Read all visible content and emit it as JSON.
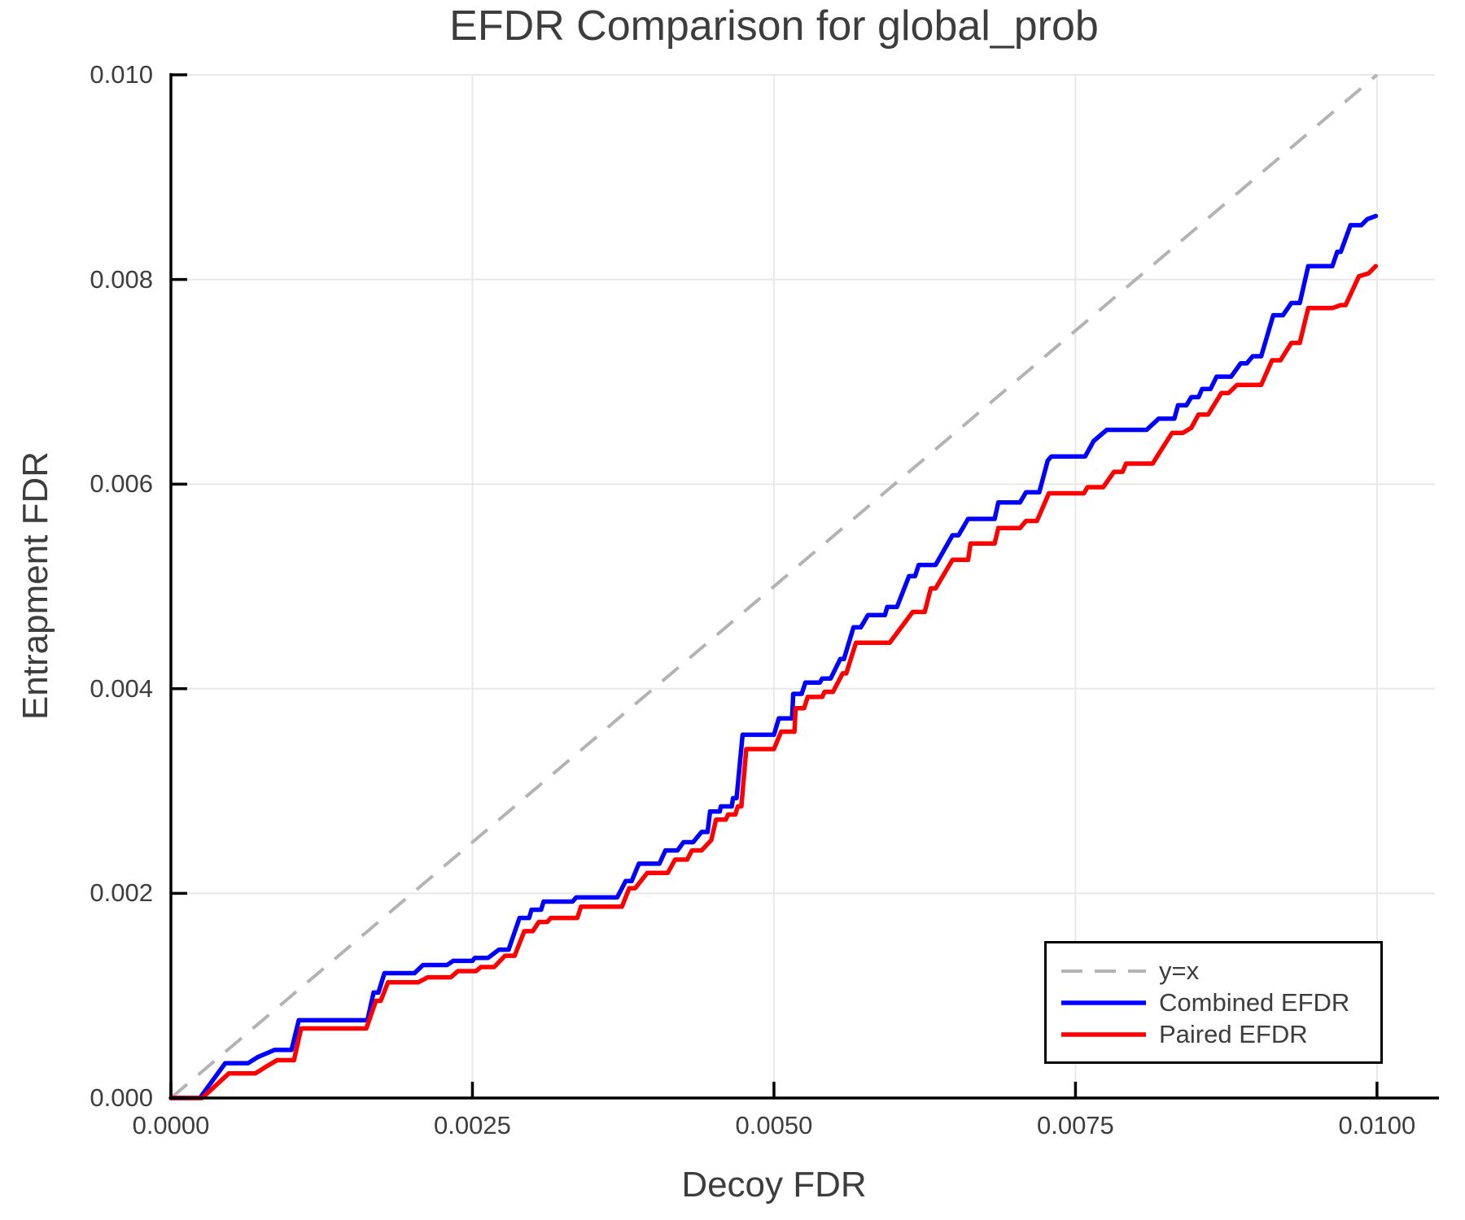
{
  "title": "EFDR Comparison for global_prob",
  "axes": {
    "x_label": "Decoy FDR",
    "y_label": "Entrapment FDR",
    "x_tick_labels": [
      "0.0000",
      "0.0025",
      "0.0050",
      "0.0075",
      "0.0100"
    ],
    "y_tick_labels": [
      "0.000",
      "0.002",
      "0.004",
      "0.006",
      "0.008",
      "0.010"
    ]
  },
  "colors": {
    "combined": "#0000ff",
    "paired": "#ff0000",
    "identity": "#b3b3b3",
    "grid": "#e8e8e8",
    "axis": "#000000",
    "text": "#3d3d3d",
    "background": "#ffffff"
  },
  "legend": {
    "entries": [
      {
        "label": "y=x",
        "color": "#b3b3b3",
        "dashed": true
      },
      {
        "label": "Combined EFDR",
        "color": "#0000ff",
        "dashed": false
      },
      {
        "label": "Paired EFDR",
        "color": "#ff0000",
        "dashed": false
      }
    ]
  },
  "chart_data": {
    "type": "line",
    "title": "EFDR Comparison for global_prob",
    "xlabel": "Decoy FDR",
    "ylabel": "Entrapment FDR",
    "xlim": [
      0,
      0.01048
    ],
    "ylim": [
      0,
      0.01
    ],
    "x_tick_values": [
      0,
      0.0025,
      0.005,
      0.0075,
      0.01
    ],
    "y_tick_values": [
      0,
      0.002,
      0.004,
      0.006,
      0.008,
      0.01
    ],
    "grid": true,
    "legend_position": "lower right",
    "series": [
      {
        "name": "y=x",
        "style": "dashed",
        "color": "#b3b3b3",
        "points": [
          [
            0,
            0
          ],
          [
            0.01,
            0.01
          ]
        ]
      },
      {
        "name": "Combined EFDR",
        "style": "solid",
        "color": "#0000ff",
        "points": [
          [
            0,
            0
          ],
          [
            0.00024,
            0
          ],
          [
            0.00045,
            0.00034
          ],
          [
            0.00064,
            0.00034
          ],
          [
            0.00072,
            0.0004
          ],
          [
            0.00086,
            0.00047
          ],
          [
            0.001,
            0.00047
          ],
          [
            0.00106,
            0.00076
          ],
          [
            0.00163,
            0.00076
          ],
          [
            0.00168,
            0.00103
          ],
          [
            0.00172,
            0.00103
          ],
          [
            0.00177,
            0.00122
          ],
          [
            0.00202,
            0.00122
          ],
          [
            0.00209,
            0.0013
          ],
          [
            0.00229,
            0.0013
          ],
          [
            0.00234,
            0.00134
          ],
          [
            0.0025,
            0.00134
          ],
          [
            0.00252,
            0.00137
          ],
          [
            0.00263,
            0.00137
          ],
          [
            0.00272,
            0.00145
          ],
          [
            0.0028,
            0.00145
          ],
          [
            0.00289,
            0.00176
          ],
          [
            0.00297,
            0.00176
          ],
          [
            0.00299,
            0.00184
          ],
          [
            0.00307,
            0.00184
          ],
          [
            0.00309,
            0.00192
          ],
          [
            0.00333,
            0.00192
          ],
          [
            0.00336,
            0.00196
          ],
          [
            0.0037,
            0.00196
          ],
          [
            0.00377,
            0.00212
          ],
          [
            0.00382,
            0.00212
          ],
          [
            0.00388,
            0.00229
          ],
          [
            0.00405,
            0.00229
          ],
          [
            0.0041,
            0.00242
          ],
          [
            0.0042,
            0.00242
          ],
          [
            0.00425,
            0.0025
          ],
          [
            0.00433,
            0.0025
          ],
          [
            0.0044,
            0.0026
          ],
          [
            0.00445,
            0.0026
          ],
          [
            0.00447,
            0.0028
          ],
          [
            0.00455,
            0.0028
          ],
          [
            0.00456,
            0.00285
          ],
          [
            0.00465,
            0.00285
          ],
          [
            0.00466,
            0.00293
          ],
          [
            0.00469,
            0.00293
          ],
          [
            0.00474,
            0.00355
          ],
          [
            0.005,
            0.00355
          ],
          [
            0.00504,
            0.00371
          ],
          [
            0.00515,
            0.00371
          ],
          [
            0.00516,
            0.00395
          ],
          [
            0.00523,
            0.00395
          ],
          [
            0.00526,
            0.00406
          ],
          [
            0.00538,
            0.00406
          ],
          [
            0.0054,
            0.0041
          ],
          [
            0.00547,
            0.0041
          ],
          [
            0.00555,
            0.00429
          ],
          [
            0.00558,
            0.00429
          ],
          [
            0.00566,
            0.0046
          ],
          [
            0.00572,
            0.0046
          ],
          [
            0.00578,
            0.00472
          ],
          [
            0.00592,
            0.00472
          ],
          [
            0.00594,
            0.0048
          ],
          [
            0.00602,
            0.0048
          ],
          [
            0.00612,
            0.0051
          ],
          [
            0.00617,
            0.0051
          ],
          [
            0.0062,
            0.00521
          ],
          [
            0.00634,
            0.00521
          ],
          [
            0.00648,
            0.0055
          ],
          [
            0.00653,
            0.0055
          ],
          [
            0.00661,
            0.00566
          ],
          [
            0.00683,
            0.00566
          ],
          [
            0.00686,
            0.00582
          ],
          [
            0.00704,
            0.00582
          ],
          [
            0.00709,
            0.00592
          ],
          [
            0.0072,
            0.00592
          ],
          [
            0.00727,
            0.00623
          ],
          [
            0.0073,
            0.00627
          ],
          [
            0.00758,
            0.00627
          ],
          [
            0.00765,
            0.00642
          ],
          [
            0.00776,
            0.00653
          ],
          [
            0.00809,
            0.00653
          ],
          [
            0.00819,
            0.00664
          ],
          [
            0.00832,
            0.00664
          ],
          [
            0.00835,
            0.00677
          ],
          [
            0.00842,
            0.00677
          ],
          [
            0.00846,
            0.00685
          ],
          [
            0.00852,
            0.00685
          ],
          [
            0.00855,
            0.00693
          ],
          [
            0.00862,
            0.00693
          ],
          [
            0.00867,
            0.00705
          ],
          [
            0.00879,
            0.00705
          ],
          [
            0.00887,
            0.00718
          ],
          [
            0.00892,
            0.00718
          ],
          [
            0.00897,
            0.00725
          ],
          [
            0.00904,
            0.00725
          ],
          [
            0.00914,
            0.00765
          ],
          [
            0.00922,
            0.00765
          ],
          [
            0.00929,
            0.00777
          ],
          [
            0.00936,
            0.00777
          ],
          [
            0.00943,
            0.00813
          ],
          [
            0.00963,
            0.00813
          ],
          [
            0.00967,
            0.00827
          ],
          [
            0.0097,
            0.00827
          ],
          [
            0.00978,
            0.00853
          ],
          [
            0.00987,
            0.00853
          ],
          [
            0.00992,
            0.00859
          ],
          [
            0.00999,
            0.00862
          ]
        ]
      },
      {
        "name": "Paired EFDR",
        "style": "solid",
        "color": "#ff0000",
        "points": [
          [
            0,
            0
          ],
          [
            0.00026,
            0
          ],
          [
            0.00048,
            0.00024
          ],
          [
            0.0007,
            0.00024
          ],
          [
            0.00078,
            0.0003
          ],
          [
            0.00088,
            0.00037
          ],
          [
            0.00102,
            0.00037
          ],
          [
            0.00108,
            0.00068
          ],
          [
            0.00162,
            0.00068
          ],
          [
            0.0017,
            0.00095
          ],
          [
            0.00174,
            0.00095
          ],
          [
            0.0018,
            0.00113
          ],
          [
            0.00205,
            0.00113
          ],
          [
            0.00213,
            0.00118
          ],
          [
            0.00232,
            0.00118
          ],
          [
            0.00238,
            0.00124
          ],
          [
            0.00253,
            0.00124
          ],
          [
            0.00257,
            0.00128
          ],
          [
            0.00268,
            0.00128
          ],
          [
            0.00277,
            0.00139
          ],
          [
            0.00285,
            0.00139
          ],
          [
            0.00293,
            0.00163
          ],
          [
            0.003,
            0.00163
          ],
          [
            0.00305,
            0.00172
          ],
          [
            0.00312,
            0.00172
          ],
          [
            0.00315,
            0.00176
          ],
          [
            0.00337,
            0.00176
          ],
          [
            0.0034,
            0.00187
          ],
          [
            0.00374,
            0.00187
          ],
          [
            0.0038,
            0.00205
          ],
          [
            0.00385,
            0.00205
          ],
          [
            0.00395,
            0.0022
          ],
          [
            0.00412,
            0.0022
          ],
          [
            0.00418,
            0.00233
          ],
          [
            0.00428,
            0.00233
          ],
          [
            0.00432,
            0.00242
          ],
          [
            0.0044,
            0.00242
          ],
          [
            0.00448,
            0.00252
          ],
          [
            0.00452,
            0.00272
          ],
          [
            0.0046,
            0.00272
          ],
          [
            0.00462,
            0.00277
          ],
          [
            0.00468,
            0.00277
          ],
          [
            0.0047,
            0.00285
          ],
          [
            0.00473,
            0.00285
          ],
          [
            0.00477,
            0.00341
          ],
          [
            0.005,
            0.00341
          ],
          [
            0.00506,
            0.00358
          ],
          [
            0.00517,
            0.00358
          ],
          [
            0.00518,
            0.00381
          ],
          [
            0.00525,
            0.00381
          ],
          [
            0.00528,
            0.00392
          ],
          [
            0.0054,
            0.00392
          ],
          [
            0.00542,
            0.00397
          ],
          [
            0.00549,
            0.00397
          ],
          [
            0.00557,
            0.00415
          ],
          [
            0.0056,
            0.00415
          ],
          [
            0.00568,
            0.00445
          ],
          [
            0.00596,
            0.00445
          ],
          [
            0.00615,
            0.00475
          ],
          [
            0.00625,
            0.00475
          ],
          [
            0.0063,
            0.00498
          ],
          [
            0.00634,
            0.00498
          ],
          [
            0.00648,
            0.00526
          ],
          [
            0.00661,
            0.00526
          ],
          [
            0.00663,
            0.00542
          ],
          [
            0.00683,
            0.00542
          ],
          [
            0.00686,
            0.00557
          ],
          [
            0.00704,
            0.00557
          ],
          [
            0.00709,
            0.00564
          ],
          [
            0.00718,
            0.00564
          ],
          [
            0.00728,
            0.00591
          ],
          [
            0.00757,
            0.00591
          ],
          [
            0.0076,
            0.00597
          ],
          [
            0.00773,
            0.00597
          ],
          [
            0.00782,
            0.00612
          ],
          [
            0.00789,
            0.00612
          ],
          [
            0.00792,
            0.0062
          ],
          [
            0.00814,
            0.0062
          ],
          [
            0.0083,
            0.0065
          ],
          [
            0.00839,
            0.0065
          ],
          [
            0.00846,
            0.00655
          ],
          [
            0.00852,
            0.00668
          ],
          [
            0.0086,
            0.00668
          ],
          [
            0.00871,
            0.00689
          ],
          [
            0.00877,
            0.00689
          ],
          [
            0.00884,
            0.00697
          ],
          [
            0.00904,
            0.00697
          ],
          [
            0.00913,
            0.00721
          ],
          [
            0.0092,
            0.00721
          ],
          [
            0.00929,
            0.00738
          ],
          [
            0.00936,
            0.00738
          ],
          [
            0.00943,
            0.00772
          ],
          [
            0.00963,
            0.00772
          ],
          [
            0.0097,
            0.00775
          ],
          [
            0.00974,
            0.00775
          ],
          [
            0.00985,
            0.00803
          ],
          [
            0.00993,
            0.00806
          ],
          [
            0.00999,
            0.00813
          ]
        ]
      }
    ]
  }
}
